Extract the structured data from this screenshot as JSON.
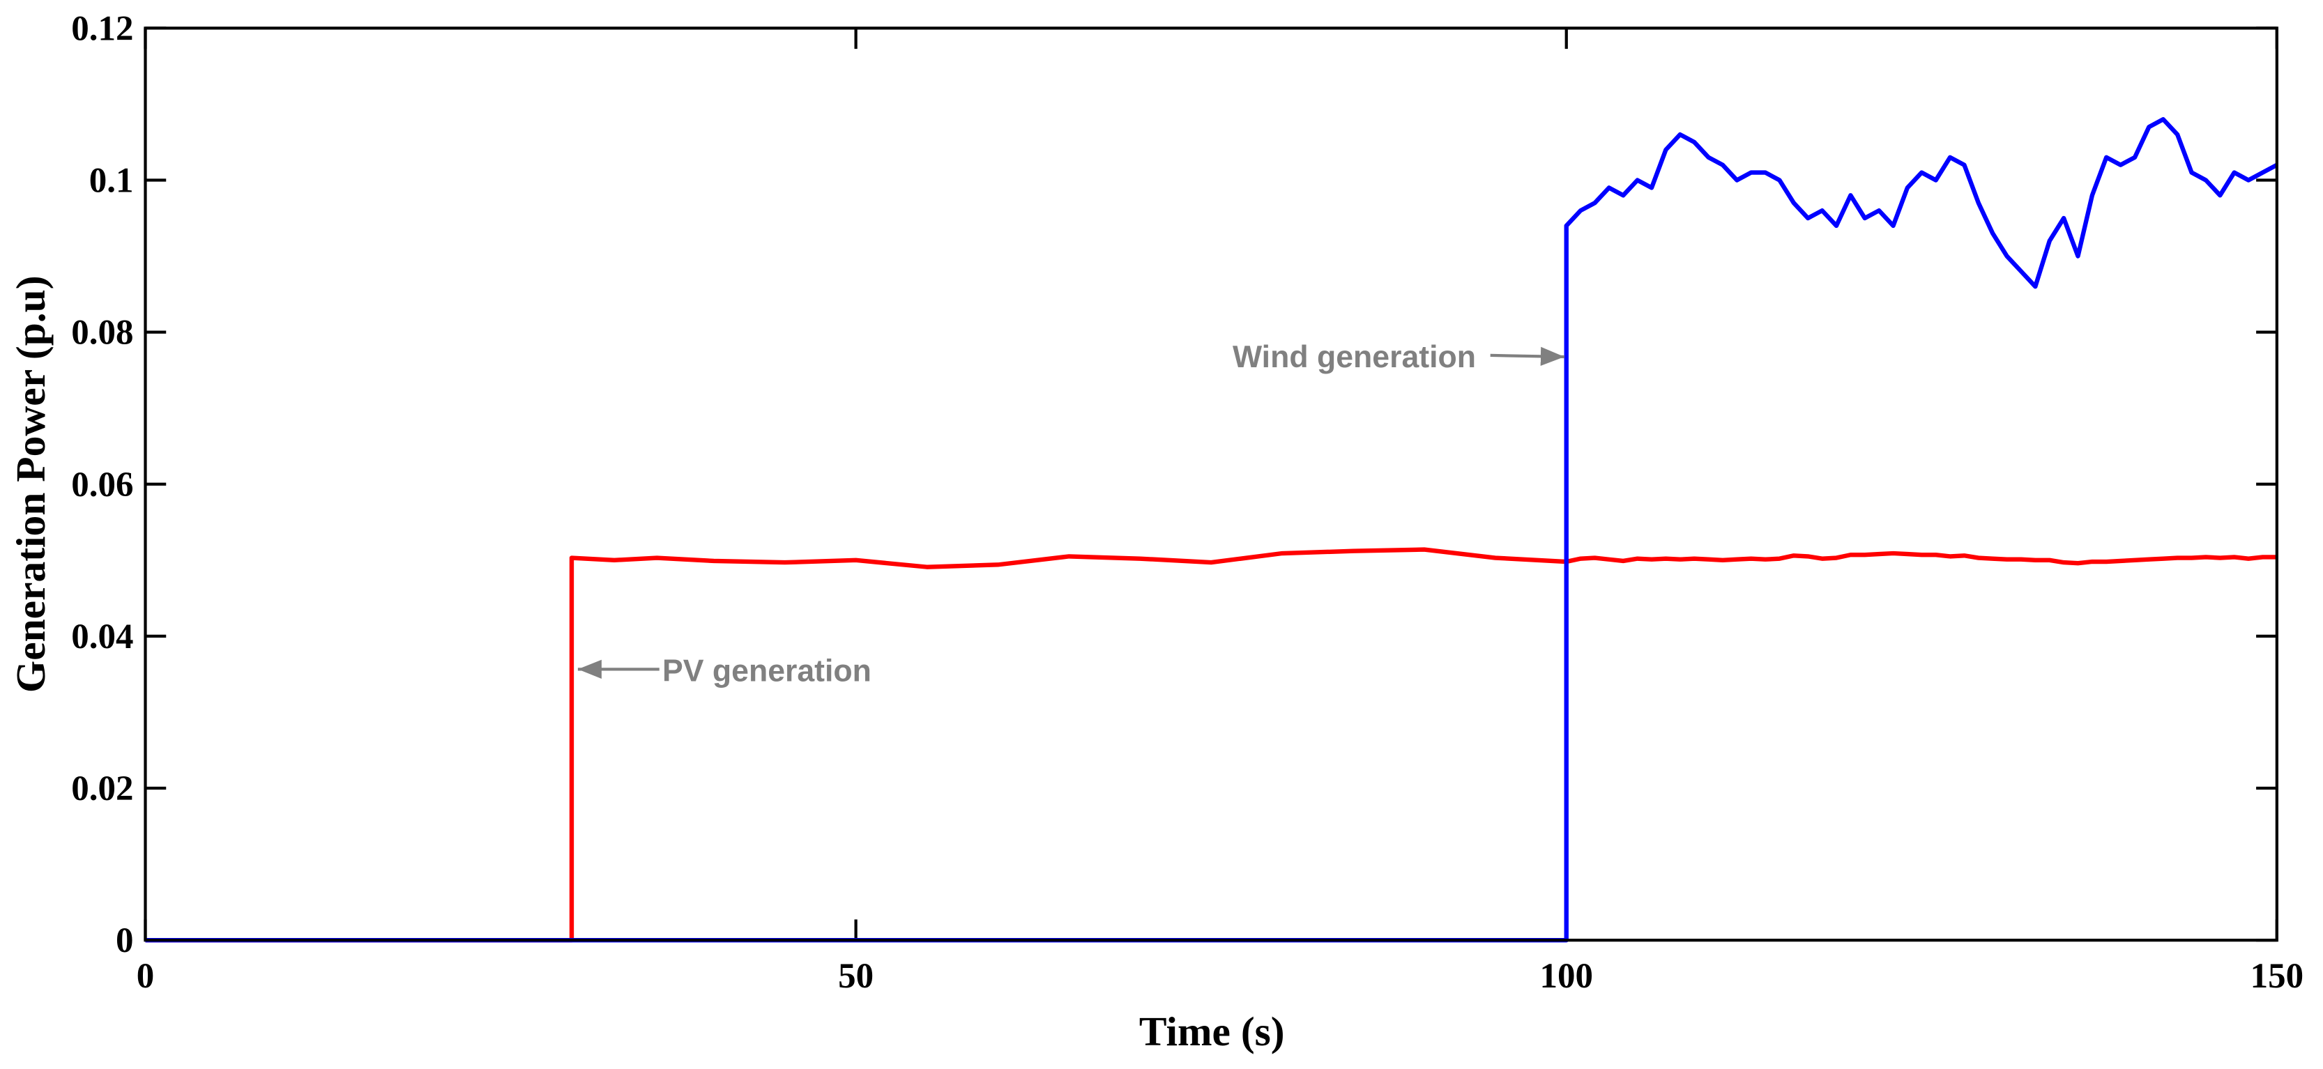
{
  "chart_data": {
    "type": "line",
    "xlabel": "Time (s)",
    "ylabel": "Generation Power (p.u)",
    "x": [
      0,
      30,
      30,
      33,
      36,
      40,
      45,
      50,
      55,
      60,
      65,
      70,
      75,
      80,
      85,
      90,
      95,
      100,
      100,
      101,
      102,
      103,
      104,
      105,
      106,
      107,
      108,
      109,
      110,
      111,
      112,
      113,
      114,
      115,
      116,
      117,
      118,
      119,
      120,
      121,
      122,
      123,
      124,
      125,
      126,
      127,
      128,
      129,
      130,
      131,
      132,
      133,
      134,
      135,
      136,
      137,
      138,
      139,
      140,
      141,
      142,
      143,
      144,
      145,
      146,
      147,
      148,
      149,
      150
    ],
    "series": [
      {
        "name": "PV generation",
        "color": "#ff0000",
        "values": [
          0,
          0,
          0.0503,
          0.05,
          0.0503,
          0.0499,
          0.0497,
          0.05,
          0.0491,
          0.0494,
          0.0505,
          0.0502,
          0.0497,
          0.0509,
          0.0512,
          0.0514,
          0.0503,
          0.0498,
          0.0498,
          0.0502,
          0.0503,
          0.0501,
          0.0499,
          0.0502,
          0.0501,
          0.0502,
          0.0501,
          0.0502,
          0.0501,
          0.05,
          0.0501,
          0.0502,
          0.0501,
          0.0502,
          0.0506,
          0.0505,
          0.0502,
          0.0503,
          0.0507,
          0.0507,
          0.0508,
          0.0509,
          0.0508,
          0.0507,
          0.0507,
          0.0505,
          0.0506,
          0.0503,
          0.0502,
          0.0501,
          0.0501,
          0.05,
          0.05,
          0.0497,
          0.0496,
          0.0498,
          0.0498,
          0.0499,
          0.05,
          0.0501,
          0.0502,
          0.0503,
          0.0503,
          0.0504,
          0.0503,
          0.0504,
          0.0502,
          0.0504,
          0.0504
        ]
      },
      {
        "name": "Wind generation",
        "color": "#0000ff",
        "values": [
          0,
          0,
          0,
          0,
          0,
          0,
          0,
          0,
          0,
          0,
          0,
          0,
          0,
          0,
          0,
          0,
          0,
          0,
          0.094,
          0.096,
          0.097,
          0.099,
          0.098,
          0.1,
          0.099,
          0.104,
          0.106,
          0.105,
          0.103,
          0.102,
          0.1,
          0.101,
          0.101,
          0.1,
          0.097,
          0.095,
          0.096,
          0.094,
          0.098,
          0.095,
          0.096,
          0.094,
          0.099,
          0.101,
          0.1,
          0.103,
          0.102,
          0.097,
          0.093,
          0.09,
          0.088,
          0.086,
          0.092,
          0.095,
          0.09,
          0.098,
          0.103,
          0.102,
          0.103,
          0.107,
          0.108,
          0.106,
          0.101,
          0.1,
          0.098,
          0.101,
          0.1,
          0.101,
          0.102
        ]
      }
    ],
    "xlim": [
      0,
      150
    ],
    "xticks": [
      0,
      50,
      100,
      150
    ],
    "ylim": [
      0,
      0.12
    ],
    "yticks": [
      0,
      0.02,
      0.04,
      0.06,
      0.08,
      0.1,
      0.12
    ]
  }
}
